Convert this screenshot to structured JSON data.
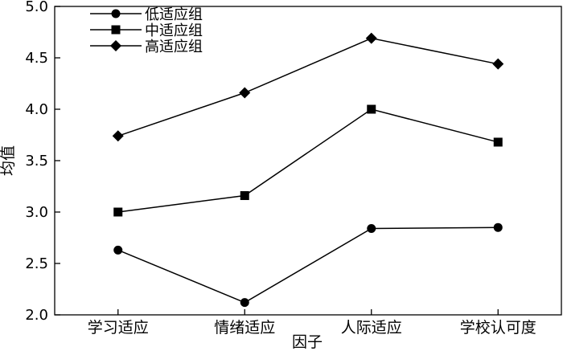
{
  "chart_data": {
    "type": "line",
    "xlabel": "因子",
    "ylabel": "均值",
    "categories": [
      "学习适应",
      "情绪适应",
      "人际适应",
      "学校认可度"
    ],
    "ylim": [
      2.0,
      5.0
    ],
    "yticks": [
      "2.0",
      "2.5",
      "3.0",
      "3.5",
      "4.0",
      "4.5",
      "5.0"
    ],
    "grid": false,
    "legend_position": "top-left",
    "series": [
      {
        "name": "低适应组",
        "marker": "circle",
        "values": [
          2.63,
          2.12,
          2.84,
          2.85
        ]
      },
      {
        "name": "中适应组",
        "marker": "square",
        "values": [
          3.0,
          3.16,
          4.0,
          3.68
        ]
      },
      {
        "name": "高适应组",
        "marker": "diamond",
        "values": [
          3.74,
          4.16,
          4.69,
          4.44
        ]
      }
    ],
    "colors": {
      "line": "#000000",
      "axis": "#000000"
    }
  }
}
